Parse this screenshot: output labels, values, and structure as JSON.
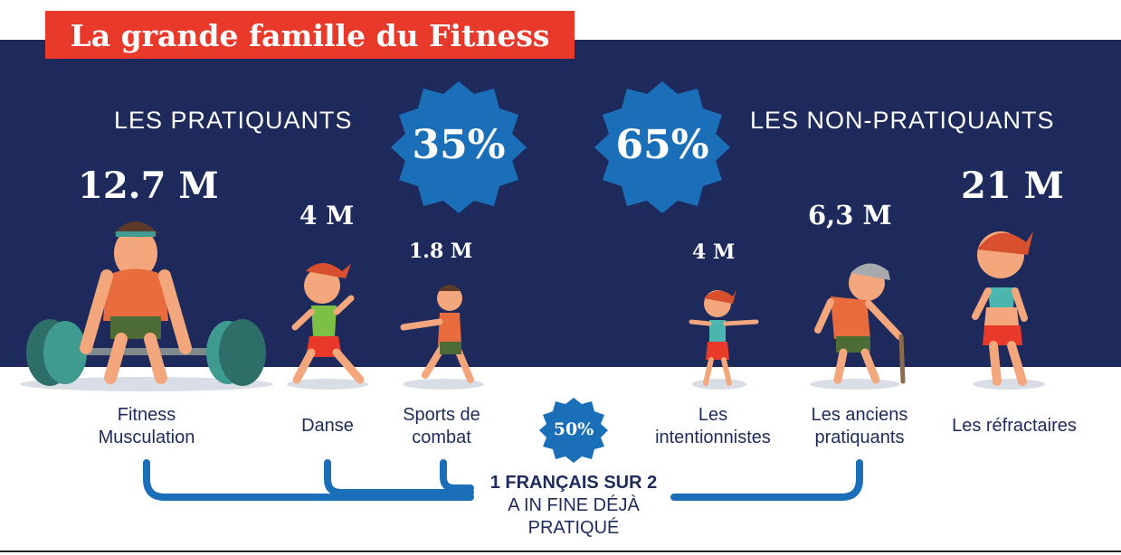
{
  "title": "La grande famille du Fitness",
  "sections": {
    "practitioners": {
      "label": "LES PRATIQUANTS",
      "percent": "35%"
    },
    "non_practitioners": {
      "label": "LES NON-PRATIQUANTS",
      "percent": "65%"
    }
  },
  "groups": [
    {
      "count": "12.7 M",
      "label_line1": "Fitness",
      "label_line2": "Musculation"
    },
    {
      "count": "4 M",
      "label_line1": "Danse",
      "label_line2": ""
    },
    {
      "count": "1.8 M",
      "label_line1": "Sports de",
      "label_line2": "combat"
    },
    {
      "count": "4 M",
      "label_line1": "Les",
      "label_line2": "intentionnistes"
    },
    {
      "count": "6,3 M",
      "label_line1": "Les anciens",
      "label_line2": "pratiquants"
    },
    {
      "count": "21 M",
      "label_line1": "Les réfractaires",
      "label_line2": ""
    }
  ],
  "bottom": {
    "badge": "50%",
    "line1": "1 FRANÇAIS SUR 2",
    "line2": "A IN FINE DÉJÀ",
    "line3": "PRATIQUÉ"
  },
  "colors": {
    "navy": "#1e2a5b",
    "red": "#e8392b",
    "blue": "#1a6fb8",
    "white": "#ffffff"
  }
}
